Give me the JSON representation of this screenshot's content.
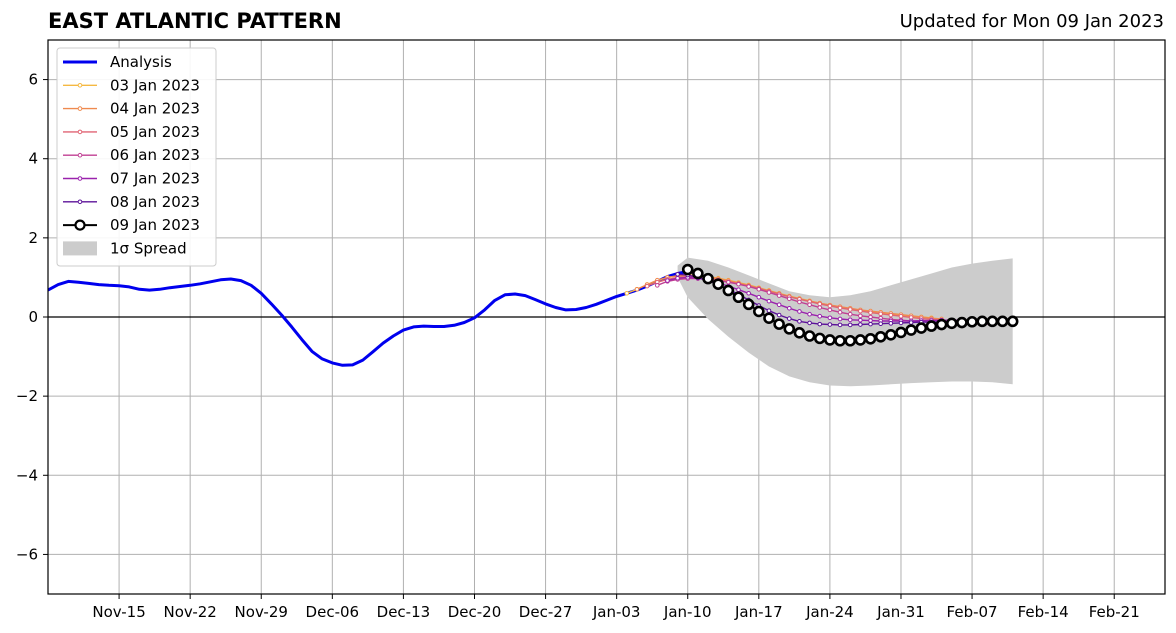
{
  "title": "EAST ATLANTIC PATTERN",
  "updated": "Updated for Mon 09 Jan 2023",
  "chart_data": {
    "type": "line",
    "ylim": [
      -7,
      7
    ],
    "yticks": [
      -6,
      -4,
      -2,
      0,
      2,
      4,
      6
    ],
    "ytick_labels": [
      "−6",
      "−4",
      "−2",
      "0",
      "2",
      "4",
      "6"
    ],
    "xlim": [
      "2022-11-08",
      "2023-02-26"
    ],
    "xticks": [
      "2022-11-15",
      "2022-11-22",
      "2022-11-29",
      "2022-12-06",
      "2022-12-13",
      "2022-12-20",
      "2022-12-27",
      "2023-01-03",
      "2023-01-10",
      "2023-01-17",
      "2023-01-24",
      "2023-01-31",
      "2023-02-07",
      "2023-02-14",
      "2023-02-21"
    ],
    "xtick_labels": [
      "Nov-15",
      "Nov-22",
      "Nov-29",
      "Dec-06",
      "Dec-13",
      "Dec-20",
      "Dec-27",
      "Jan-03",
      "Jan-10",
      "Jan-17",
      "Jan-24",
      "Jan-31",
      "Feb-07",
      "Feb-14",
      "Feb-21"
    ],
    "grid": true,
    "legend_position": "top-left",
    "legend_entries": [
      "Analysis",
      "03 Jan 2023",
      "04 Jan 2023",
      "05 Jan 2023",
      "06 Jan 2023",
      "07 Jan 2023",
      "08 Jan 2023",
      "09 Jan 2023",
      "1σ Spread"
    ],
    "colors": {
      "analysis": "#0000ee",
      "f0103": "#f5b942",
      "f0104": "#ef8a4f",
      "f0105": "#e06473",
      "f0106": "#c03f93",
      "f0107": "#9a22ad",
      "f0108": "#5c129a",
      "f0109": "#000000",
      "spread": "#cccccc"
    },
    "analysis": {
      "name": "Analysis",
      "x": [
        "2022-11-08",
        "2022-11-09",
        "2022-11-10",
        "2022-11-11",
        "2022-11-12",
        "2022-11-13",
        "2022-11-14",
        "2022-11-15",
        "2022-11-16",
        "2022-11-17",
        "2022-11-18",
        "2022-11-19",
        "2022-11-20",
        "2022-11-21",
        "2022-11-22",
        "2022-11-23",
        "2022-11-24",
        "2022-11-25",
        "2022-11-26",
        "2022-11-27",
        "2022-11-28",
        "2022-11-29",
        "2022-11-30",
        "2022-12-01",
        "2022-12-02",
        "2022-12-03",
        "2022-12-04",
        "2022-12-05",
        "2022-12-06",
        "2022-12-07",
        "2022-12-08",
        "2022-12-09",
        "2022-12-10",
        "2022-12-11",
        "2022-12-12",
        "2022-12-13",
        "2022-12-14",
        "2022-12-15",
        "2022-12-16",
        "2022-12-17",
        "2022-12-18",
        "2022-12-19",
        "2022-12-20",
        "2022-12-21",
        "2022-12-22",
        "2022-12-23",
        "2022-12-24",
        "2022-12-25",
        "2022-12-26",
        "2022-12-27",
        "2022-12-28",
        "2022-12-29",
        "2022-12-30",
        "2022-12-31",
        "2023-01-01",
        "2023-01-02",
        "2023-01-03",
        "2023-01-04",
        "2023-01-05",
        "2023-01-06",
        "2023-01-07",
        "2023-01-08",
        "2023-01-09",
        "2023-01-10"
      ],
      "y": [
        0.68,
        0.82,
        0.9,
        0.88,
        0.85,
        0.82,
        0.8,
        0.79,
        0.76,
        0.7,
        0.68,
        0.7,
        0.74,
        0.77,
        0.8,
        0.84,
        0.89,
        0.94,
        0.96,
        0.92,
        0.8,
        0.6,
        0.33,
        0.05,
        -0.25,
        -0.57,
        -0.87,
        -1.06,
        -1.16,
        -1.22,
        -1.21,
        -1.09,
        -0.88,
        -0.66,
        -0.48,
        -0.33,
        -0.25,
        -0.23,
        -0.24,
        -0.24,
        -0.21,
        -0.14,
        -0.02,
        0.18,
        0.42,
        0.56,
        0.58,
        0.54,
        0.44,
        0.33,
        0.24,
        0.18,
        0.19,
        0.24,
        0.32,
        0.42,
        0.52,
        0.6,
        0.68,
        0.78,
        0.9,
        1.02,
        1.1,
        1.15
      ]
    },
    "spread": {
      "name": "1σ Spread",
      "x": [
        "2023-01-09",
        "2023-01-10",
        "2023-01-12",
        "2023-01-14",
        "2023-01-16",
        "2023-01-18",
        "2023-01-20",
        "2023-01-22",
        "2023-01-24",
        "2023-01-26",
        "2023-01-28",
        "2023-01-30",
        "2023-02-01",
        "2023-02-03",
        "2023-02-05",
        "2023-02-07",
        "2023-02-09",
        "2023-02-11"
      ],
      "upper": [
        1.3,
        1.5,
        1.42,
        1.25,
        1.05,
        0.85,
        0.65,
        0.55,
        0.5,
        0.55,
        0.65,
        0.8,
        0.95,
        1.1,
        1.25,
        1.35,
        1.42,
        1.48
      ],
      "lower": [
        1.0,
        0.5,
        -0.05,
        -0.5,
        -0.9,
        -1.25,
        -1.5,
        -1.65,
        -1.73,
        -1.75,
        -1.73,
        -1.7,
        -1.67,
        -1.65,
        -1.63,
        -1.63,
        -1.65,
        -1.7
      ]
    },
    "series": [
      {
        "name": "03 Jan 2023",
        "color_key": "f0103",
        "x": [
          "2023-01-04",
          "2023-01-05",
          "2023-01-06",
          "2023-01-07",
          "2023-01-08",
          "2023-01-09",
          "2023-01-10",
          "2023-01-11",
          "2023-01-12",
          "2023-01-13",
          "2023-01-14",
          "2023-01-15",
          "2023-01-16",
          "2023-01-17",
          "2023-01-18",
          "2023-01-19",
          "2023-01-20",
          "2023-01-21",
          "2023-01-22",
          "2023-01-23",
          "2023-01-24",
          "2023-01-25",
          "2023-01-26",
          "2023-01-27",
          "2023-01-28",
          "2023-01-29",
          "2023-01-30",
          "2023-01-31",
          "2023-02-01",
          "2023-02-02",
          "2023-02-03"
        ],
        "y": [
          0.6,
          0.7,
          0.82,
          0.92,
          1.0,
          1.04,
          1.06,
          1.05,
          1.02,
          0.98,
          0.93,
          0.87,
          0.81,
          0.74,
          0.67,
          0.6,
          0.53,
          0.47,
          0.41,
          0.35,
          0.3,
          0.25,
          0.21,
          0.17,
          0.14,
          0.11,
          0.08,
          0.05,
          0.02,
          0.0,
          -0.02
        ]
      },
      {
        "name": "04 Jan 2023",
        "color_key": "f0104",
        "x": [
          "2023-01-05",
          "2023-01-06",
          "2023-01-07",
          "2023-01-08",
          "2023-01-09",
          "2023-01-10",
          "2023-01-11",
          "2023-01-12",
          "2023-01-13",
          "2023-01-14",
          "2023-01-15",
          "2023-01-16",
          "2023-01-17",
          "2023-01-18",
          "2023-01-19",
          "2023-01-20",
          "2023-01-21",
          "2023-01-22",
          "2023-01-23",
          "2023-01-24",
          "2023-01-25",
          "2023-01-26",
          "2023-01-27",
          "2023-01-28",
          "2023-01-29",
          "2023-01-30",
          "2023-01-31",
          "2023-02-01",
          "2023-02-02",
          "2023-02-03",
          "2023-02-04"
        ],
        "y": [
          0.7,
          0.82,
          0.93,
          1.0,
          1.04,
          1.05,
          1.04,
          1.01,
          0.97,
          0.92,
          0.86,
          0.8,
          0.73,
          0.66,
          0.59,
          0.52,
          0.46,
          0.4,
          0.35,
          0.3,
          0.26,
          0.22,
          0.18,
          0.15,
          0.12,
          0.09,
          0.06,
          0.03,
          0.0,
          -0.03,
          -0.05
        ]
      },
      {
        "name": "05 Jan 2023",
        "color_key": "f0105",
        "x": [
          "2023-01-06",
          "2023-01-07",
          "2023-01-08",
          "2023-01-09",
          "2023-01-10",
          "2023-01-11",
          "2023-01-12",
          "2023-01-13",
          "2023-01-14",
          "2023-01-15",
          "2023-01-16",
          "2023-01-17",
          "2023-01-18",
          "2023-01-19",
          "2023-01-20",
          "2023-01-21",
          "2023-01-22",
          "2023-01-23",
          "2023-01-24",
          "2023-01-25",
          "2023-01-26",
          "2023-01-27",
          "2023-01-28",
          "2023-01-29",
          "2023-01-30",
          "2023-01-31",
          "2023-02-01",
          "2023-02-02",
          "2023-02-03",
          "2023-02-04",
          "2023-02-05"
        ],
        "y": [
          0.78,
          0.88,
          0.95,
          1.0,
          1.02,
          1.01,
          0.98,
          0.94,
          0.89,
          0.84,
          0.78,
          0.72,
          0.65,
          0.58,
          0.51,
          0.45,
          0.39,
          0.33,
          0.28,
          0.23,
          0.19,
          0.15,
          0.11,
          0.08,
          0.05,
          0.02,
          -0.01,
          -0.04,
          -0.06,
          -0.08,
          -0.09
        ]
      },
      {
        "name": "06 Jan 2023",
        "color_key": "f0106",
        "x": [
          "2023-01-07",
          "2023-01-08",
          "2023-01-09",
          "2023-01-10",
          "2023-01-11",
          "2023-01-12",
          "2023-01-13",
          "2023-01-14",
          "2023-01-15",
          "2023-01-16",
          "2023-01-17",
          "2023-01-18",
          "2023-01-19",
          "2023-01-20",
          "2023-01-21",
          "2023-01-22",
          "2023-01-23",
          "2023-01-24",
          "2023-01-25",
          "2023-01-26",
          "2023-01-27",
          "2023-01-28",
          "2023-01-29",
          "2023-01-30",
          "2023-01-31",
          "2023-02-01",
          "2023-02-02",
          "2023-02-03",
          "2023-02-04",
          "2023-02-05",
          "2023-02-06",
          "2023-02-07",
          "2023-02-08",
          "2023-02-09"
        ],
        "y": [
          0.8,
          0.9,
          0.95,
          0.97,
          0.97,
          0.95,
          0.92,
          0.88,
          0.83,
          0.77,
          0.7,
          0.62,
          0.54,
          0.46,
          0.38,
          0.31,
          0.24,
          0.18,
          0.12,
          0.07,
          0.03,
          0.0,
          -0.03,
          -0.06,
          -0.08,
          -0.1,
          -0.12,
          -0.13,
          -0.14,
          -0.15,
          -0.16,
          -0.17,
          -0.18,
          -0.18
        ]
      },
      {
        "name": "07 Jan 2023",
        "color_key": "f0107",
        "x": [
          "2023-01-08",
          "2023-01-09",
          "2023-01-10",
          "2023-01-11",
          "2023-01-12",
          "2023-01-13",
          "2023-01-14",
          "2023-01-15",
          "2023-01-16",
          "2023-01-17",
          "2023-01-18",
          "2023-01-19",
          "2023-01-20",
          "2023-01-21",
          "2023-01-22",
          "2023-01-23",
          "2023-01-24",
          "2023-01-25",
          "2023-01-26",
          "2023-01-27",
          "2023-01-28",
          "2023-01-29",
          "2023-01-30",
          "2023-01-31",
          "2023-02-01",
          "2023-02-02",
          "2023-02-03",
          "2023-02-04",
          "2023-02-05",
          "2023-02-06"
        ],
        "y": [
          0.92,
          0.98,
          1.0,
          0.98,
          0.93,
          0.86,
          0.78,
          0.69,
          0.6,
          0.5,
          0.4,
          0.31,
          0.22,
          0.14,
          0.07,
          0.02,
          -0.02,
          -0.05,
          -0.07,
          -0.08,
          -0.09,
          -0.1,
          -0.1,
          -0.1,
          -0.1,
          -0.09,
          -0.09,
          -0.08,
          -0.08,
          -0.08
        ]
      },
      {
        "name": "08 Jan 2023",
        "color_key": "f0108",
        "x": [
          "2023-01-09",
          "2023-01-10",
          "2023-01-11",
          "2023-01-12",
          "2023-01-13",
          "2023-01-14",
          "2023-01-15",
          "2023-01-16",
          "2023-01-17",
          "2023-01-18",
          "2023-01-19",
          "2023-01-20",
          "2023-01-21",
          "2023-01-22",
          "2023-01-23",
          "2023-01-24",
          "2023-01-25",
          "2023-01-26",
          "2023-01-27",
          "2023-01-28",
          "2023-01-29",
          "2023-01-30",
          "2023-01-31",
          "2023-02-01",
          "2023-02-02",
          "2023-02-03",
          "2023-02-04",
          "2023-02-05",
          "2023-02-06",
          "2023-02-07"
        ],
        "y": [
          1.08,
          1.06,
          1.0,
          0.92,
          0.82,
          0.7,
          0.57,
          0.43,
          0.29,
          0.16,
          0.05,
          -0.04,
          -0.11,
          -0.15,
          -0.18,
          -0.19,
          -0.2,
          -0.2,
          -0.19,
          -0.18,
          -0.17,
          -0.16,
          -0.15,
          -0.14,
          -0.13,
          -0.13,
          -0.12,
          -0.12,
          -0.12,
          -0.12
        ]
      },
      {
        "name": "09 Jan 2023",
        "color_key": "f0109",
        "markers": "open-circle",
        "x": [
          "2023-01-10",
          "2023-01-11",
          "2023-01-12",
          "2023-01-13",
          "2023-01-14",
          "2023-01-15",
          "2023-01-16",
          "2023-01-17",
          "2023-01-18",
          "2023-01-19",
          "2023-01-20",
          "2023-01-21",
          "2023-01-22",
          "2023-01-23",
          "2023-01-24",
          "2023-01-25",
          "2023-01-26",
          "2023-01-27",
          "2023-01-28",
          "2023-01-29",
          "2023-01-30",
          "2023-01-31",
          "2023-02-01",
          "2023-02-02",
          "2023-02-03",
          "2023-02-04",
          "2023-02-05",
          "2023-02-06",
          "2023-02-07",
          "2023-02-08",
          "2023-02-09",
          "2023-02-10",
          "2023-02-11"
        ],
        "y": [
          1.2,
          1.1,
          0.97,
          0.83,
          0.67,
          0.5,
          0.32,
          0.14,
          -0.03,
          -0.18,
          -0.3,
          -0.4,
          -0.48,
          -0.54,
          -0.58,
          -0.6,
          -0.6,
          -0.58,
          -0.55,
          -0.5,
          -0.45,
          -0.39,
          -0.33,
          -0.28,
          -0.23,
          -0.19,
          -0.16,
          -0.14,
          -0.12,
          -0.11,
          -0.11,
          -0.11,
          -0.11
        ]
      }
    ]
  }
}
